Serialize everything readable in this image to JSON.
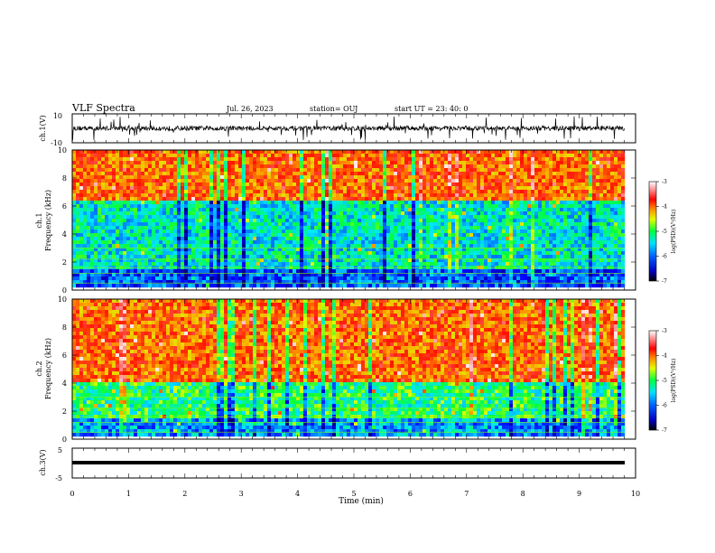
{
  "header": {
    "title": "VLF Spectra",
    "date": "Jul. 26, 2023",
    "station": "station= OUJ",
    "start": "start UT =  23: 40: 0"
  },
  "chart_data": [
    {
      "type": "line",
      "name": "ch1-waveform",
      "ylabel": "ch.1(V)",
      "ylim": [
        -10,
        10
      ],
      "yticks": [
        "10",
        "-10"
      ],
      "xlim": [
        0,
        10
      ]
    },
    {
      "type": "heatmap",
      "name": "ch1-spectrogram",
      "ylabel": "ch.1\nFrequency (kHz)",
      "ylabel_top": "ch.1",
      "ylabel_main": "Frequency (kHz)",
      "ylim": [
        0,
        10
      ],
      "yticks": [
        "0",
        "2",
        "4",
        "6",
        "8",
        "10"
      ],
      "colorbar": {
        "label": "log(PSD)(V²/Hz)",
        "range": [
          -7,
          -3
        ],
        "ticks": [
          "-3",
          "-4",
          "-5",
          "-6",
          "-7"
        ]
      }
    },
    {
      "type": "heatmap",
      "name": "ch2-spectrogram",
      "ylabel_top": "ch.2",
      "ylabel_main": "Frequency (kHz)",
      "ylim": [
        0,
        10
      ],
      "yticks": [
        "0",
        "2",
        "4",
        "6",
        "8",
        "10"
      ],
      "colorbar": {
        "label": "log(PSD)(V²/Hz)",
        "range": [
          -7,
          -3
        ],
        "ticks": [
          "-3",
          "-4",
          "-5",
          "-6",
          "-7"
        ]
      }
    },
    {
      "type": "line",
      "name": "ch3-waveform",
      "ylabel": "ch.3(V)",
      "ylim": [
        -5,
        5
      ],
      "yticks": [
        "5",
        "0",
        "-5"
      ],
      "xlim": [
        0,
        10
      ],
      "xlabel": "Time (min)",
      "xticks": [
        "0",
        "1",
        "2",
        "3",
        "4",
        "5",
        "6",
        "7",
        "8",
        "9",
        "10"
      ]
    }
  ],
  "colors": {
    "cmap": [
      "#000080",
      "#0000ff",
      "#00aaff",
      "#00ffff",
      "#00ff00",
      "#ffff00",
      "#ff8000",
      "#ff0000",
      "#ff9999",
      "#ffffff"
    ]
  }
}
